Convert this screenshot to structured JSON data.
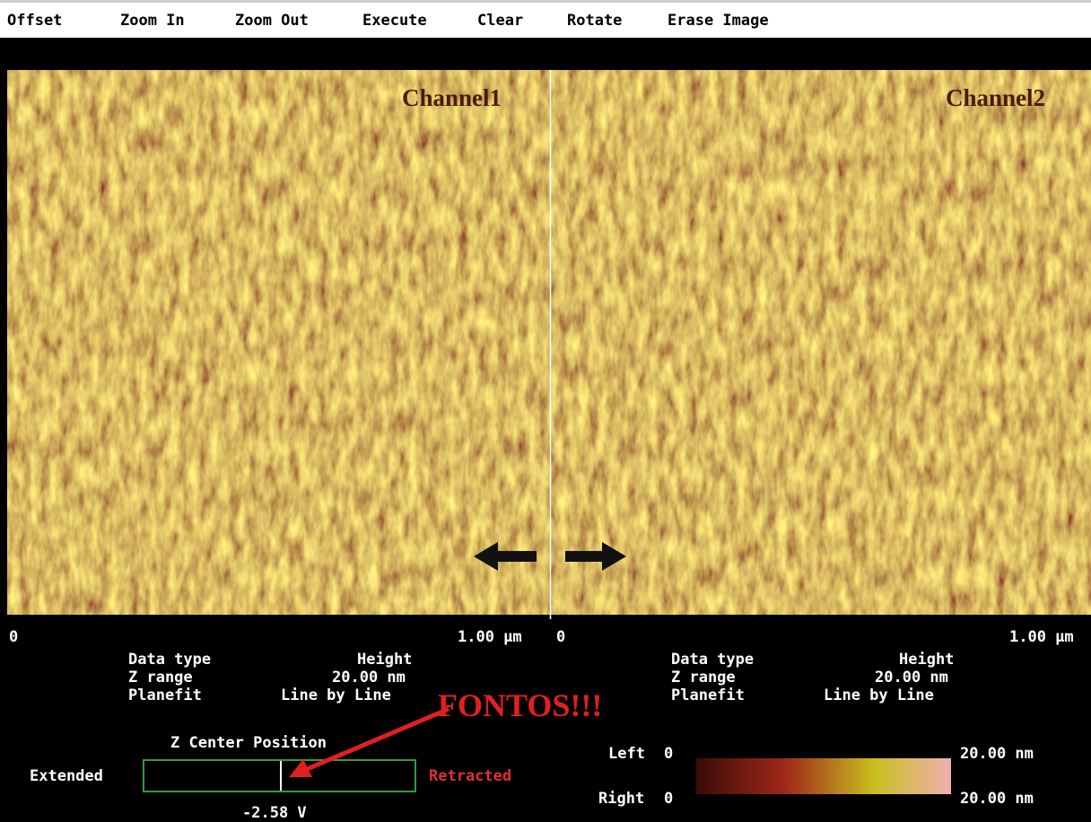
{
  "menu": {
    "items": [
      "Offset",
      "Zoom In",
      "Zoom Out",
      "Execute",
      "Clear",
      "Rotate",
      "Erase Image"
    ]
  },
  "image": {
    "channels": [
      {
        "label": "Channel1",
        "scale_start": "0",
        "scale_end": "1.00 µm",
        "info": [
          {
            "label": "Data type",
            "value": "Height"
          },
          {
            "label": "Z range",
            "value": "20.00 nm"
          },
          {
            "label": "Planefit",
            "value": "Line by Line"
          }
        ]
      },
      {
        "label": "Channel2",
        "scale_start": "0",
        "scale_end": "1.00 µm",
        "info": [
          {
            "label": "Data type",
            "value": "Height"
          },
          {
            "label": "Z range",
            "value": "20.00 nm"
          },
          {
            "label": "Planefit",
            "value": "Line by Line"
          }
        ]
      }
    ]
  },
  "annotation": {
    "text": "FONTOS!!!"
  },
  "z_center": {
    "title": "Z Center Position",
    "extended": "Extended",
    "retracted": "Retracted",
    "value": "-2.58 V"
  },
  "color_scale": {
    "left": {
      "label": "Left",
      "min": "0",
      "max": "20.00 nm"
    },
    "right": {
      "label": "Right",
      "min": "0",
      "max": "20.00 nm"
    }
  }
}
